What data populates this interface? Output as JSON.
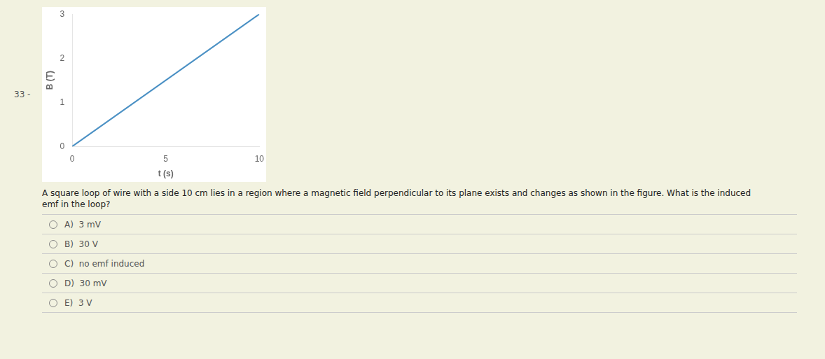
{
  "chart_data": {
    "type": "line",
    "x": [
      0,
      10
    ],
    "values": [
      0,
      3
    ],
    "color": "#4a90c4",
    "xlabel": "t (s)",
    "ylabel": "B (T)",
    "xlim": [
      0,
      10
    ],
    "ylim": [
      0,
      3
    ],
    "xticks": [
      0,
      5,
      10
    ],
    "yticks": [
      0,
      1,
      2,
      3
    ],
    "grid": false,
    "annotations": [
      "33 -",
      "A square loop of wire with a side 10 cm lies in a region where a magnetic field perpendicular to its plane exists and changes as shown in the figure. What is the induced\nemf in the loop?",
      "A)  3 mV",
      "B)  30 V",
      "C)  no emf induced",
      "D)  30 mV",
      "E)  3 V"
    ]
  }
}
